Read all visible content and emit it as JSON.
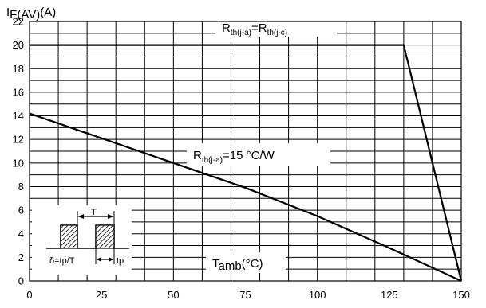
{
  "chart_data": {
    "type": "line",
    "ylabel": "I",
    "ylabel_sub": "F(AV)",
    "ylabel_unit": "(A)",
    "xlabel": "T",
    "xlabel_sub": "amb",
    "xlabel_unit": "(°C)",
    "xlim": [
      0,
      150
    ],
    "ylim": [
      0,
      22
    ],
    "x_ticks": [
      0,
      25,
      50,
      75,
      100,
      125,
      150
    ],
    "y_ticks": [
      0,
      2,
      4,
      6,
      8,
      10,
      12,
      14,
      16,
      18,
      20,
      22
    ],
    "grid": true,
    "series": [
      {
        "name": "Rth(j-a)=Rth(j-c)",
        "x": [
          0,
          130,
          150
        ],
        "y": [
          20,
          20,
          0
        ]
      },
      {
        "name": "Rth(j-a)=15 °C/W",
        "x": [
          0,
          25,
          50,
          75,
          100,
          125,
          150
        ],
        "y": [
          14.2,
          12.1,
          10.0,
          7.9,
          5.5,
          2.8,
          0
        ]
      }
    ],
    "annotations": [
      {
        "id": "top",
        "main": "R",
        "sub1": "th(j-a)",
        "mid": "=R",
        "sub2": "th(j-c)",
        "tail": ""
      },
      {
        "id": "mid",
        "main": "R",
        "sub1": "th(j-a)",
        "mid": "=15 °C/W",
        "sub2": "",
        "tail": ""
      }
    ],
    "inset": {
      "period_label": "T",
      "duty_label": "δ=tp/T",
      "pulse_label": "tp"
    }
  }
}
